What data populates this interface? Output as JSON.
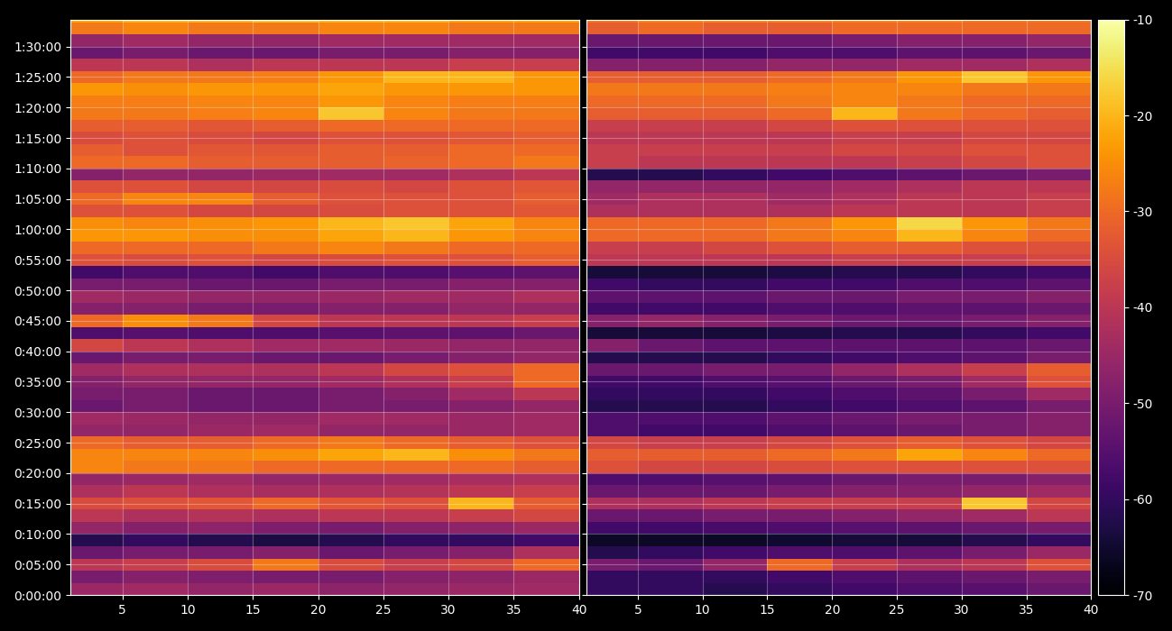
{
  "chart_data": [
    {
      "type": "heatmap",
      "color": "inferno",
      "grid": true,
      "xlim": [
        1,
        40
      ],
      "xticks": [
        5,
        10,
        15,
        20,
        25,
        30,
        35,
        40
      ],
      "ylim": [
        0,
        5666
      ],
      "yticks": [
        {
          "value": 0,
          "label": "0:00:00"
        },
        {
          "value": 300,
          "label": "0:05:00"
        },
        {
          "value": 600,
          "label": "0:10:00"
        },
        {
          "value": 900,
          "label": "0:15:00"
        },
        {
          "value": 1200,
          "label": "0:20:00"
        },
        {
          "value": 1500,
          "label": "0:25:00"
        },
        {
          "value": 1800,
          "label": "0:30:00"
        },
        {
          "value": 2100,
          "label": "0:35:00"
        },
        {
          "value": 2400,
          "label": "0:40:00"
        },
        {
          "value": 2700,
          "label": "0:45:00"
        },
        {
          "value": 3000,
          "label": "0:50:00"
        },
        {
          "value": 3300,
          "label": "0:55:00"
        },
        {
          "value": 3600,
          "label": "1:00:00"
        },
        {
          "value": 3900,
          "label": "1:05:00"
        },
        {
          "value": 4200,
          "label": "1:10:00"
        },
        {
          "value": 4500,
          "label": "1:15:00"
        },
        {
          "value": 4800,
          "label": "1:20:00"
        },
        {
          "value": 5100,
          "label": "1:25:00"
        },
        {
          "value": 5400,
          "label": "1:30:00"
        }
      ],
      "x_edges": [
        1,
        5,
        10,
        15,
        20,
        25,
        30,
        35,
        40
      ],
      "y_edges": [
        0,
        120,
        240,
        360,
        480,
        600,
        720,
        840,
        960,
        1080,
        1200,
        1320,
        1440,
        1560,
        1680,
        1800,
        1920,
        2040,
        2160,
        2280,
        2400,
        2520,
        2640,
        2760,
        2880,
        3000,
        3120,
        3240,
        3360,
        3480,
        3600,
        3720,
        3840,
        3960,
        4080,
        4200,
        4320,
        4440,
        4560,
        4680,
        4800,
        4920,
        5040,
        5160,
        5280,
        5400,
        5520,
        5640,
        5666
      ],
      "cells": [
        [
          -45,
          -44,
          -46,
          -45,
          -47,
          -46,
          -45,
          -44
        ],
        [
          -50,
          -48,
          -49,
          -50,
          -50,
          -48,
          -47,
          -45
        ],
        [
          -40,
          -38,
          -35,
          -28,
          -35,
          -38,
          -36,
          -30
        ],
        [
          -52,
          -50,
          -50,
          -48,
          -52,
          -50,
          -48,
          -42
        ],
        [
          -62,
          -60,
          -62,
          -63,
          -62,
          -60,
          -60,
          -58
        ],
        [
          -46,
          -48,
          -47,
          -49,
          -50,
          -48,
          -47,
          -45
        ],
        [
          -40,
          -42,
          -41,
          -42,
          -40,
          -40,
          -38,
          -36
        ],
        [
          -35,
          -34,
          -33,
          -30,
          -33,
          -34,
          -20,
          -32
        ],
        [
          -42,
          -40,
          -42,
          -43,
          -42,
          -41,
          -40,
          -38
        ],
        [
          -46,
          -45,
          -44,
          -46,
          -45,
          -44,
          -43,
          -42
        ],
        [
          -26,
          -28,
          -28,
          -30,
          -30,
          -30,
          -30,
          -32
        ],
        [
          -26,
          -26,
          -26,
          -25,
          -22,
          -20,
          -25,
          -28
        ],
        [
          -30,
          -32,
          -32,
          -30,
          -28,
          -30,
          -32,
          -34
        ],
        [
          -46,
          -46,
          -45,
          -44,
          -46,
          -46,
          -45,
          -44
        ],
        [
          -44,
          -45,
          -46,
          -46,
          -44,
          -44,
          -45,
          -44
        ],
        [
          -52,
          -50,
          -52,
          -52,
          -50,
          -50,
          -48,
          -46
        ],
        [
          -50,
          -50,
          -52,
          -52,
          -50,
          -48,
          -44,
          -40
        ],
        [
          -48,
          -46,
          -46,
          -46,
          -44,
          -42,
          -38,
          -30
        ],
        [
          -44,
          -42,
          -42,
          -42,
          -40,
          -36,
          -34,
          -30
        ],
        [
          -52,
          -50,
          -50,
          -52,
          -52,
          -50,
          -48,
          -46
        ],
        [
          -36,
          -40,
          -42,
          -44,
          -44,
          -45,
          -46,
          -46
        ],
        [
          -56,
          -55,
          -56,
          -56,
          -55,
          -54,
          -54,
          -52
        ],
        [
          -30,
          -25,
          -28,
          -36,
          -40,
          -40,
          -40,
          -38
        ],
        [
          -48,
          -48,
          -50,
          -50,
          -48,
          -48,
          -46,
          -46
        ],
        [
          -44,
          -45,
          -46,
          -46,
          -45,
          -44,
          -44,
          -42
        ],
        [
          -50,
          -50,
          -52,
          -52,
          -50,
          -50,
          -48,
          -48
        ],
        [
          -58,
          -56,
          -56,
          -58,
          -56,
          -56,
          -55,
          -54
        ],
        [
          -34,
          -35,
          -34,
          -36,
          -35,
          -34,
          -34,
          -32
        ],
        [
          -30,
          -30,
          -30,
          -28,
          -26,
          -28,
          -30,
          -30
        ],
        [
          -24,
          -24,
          -25,
          -25,
          -22,
          -20,
          -24,
          -26
        ],
        [
          -25,
          -26,
          -25,
          -24,
          -20,
          -18,
          -22,
          -26
        ],
        [
          -34,
          -34,
          -36,
          -36,
          -35,
          -34,
          -34,
          -33
        ],
        [
          -30,
          -26,
          -26,
          -32,
          -34,
          -34,
          -34,
          -32
        ],
        [
          -34,
          -34,
          -36,
          -36,
          -35,
          -36,
          -34,
          -33
        ],
        [
          -48,
          -46,
          -46,
          -45,
          -44,
          -44,
          -42,
          -40
        ],
        [
          -30,
          -30,
          -32,
          -32,
          -32,
          -31,
          -30,
          -28
        ],
        [
          -32,
          -34,
          -33,
          -33,
          -32,
          -32,
          -30,
          -30
        ],
        [
          -35,
          -34,
          -35,
          -36,
          -34,
          -34,
          -33,
          -32
        ],
        [
          -32,
          -32,
          -33,
          -32,
          -30,
          -30,
          -30,
          -30
        ],
        [
          -28,
          -28,
          -27,
          -26,
          -18,
          -26,
          -28,
          -28
        ],
        [
          -27,
          -27,
          -26,
          -26,
          -24,
          -26,
          -27,
          -27
        ],
        [
          -24,
          -25,
          -24,
          -24,
          -22,
          -24,
          -24,
          -24
        ],
        [
          -30,
          -28,
          -28,
          -27,
          -24,
          -20,
          -20,
          -24
        ],
        [
          -40,
          -40,
          -42,
          -40,
          -40,
          -40,
          -38,
          -38
        ],
        [
          -52,
          -50,
          -52,
          -52,
          -50,
          -50,
          -48,
          -48
        ],
        [
          -46,
          -44,
          -46,
          -46,
          -44,
          -44,
          -44,
          -44
        ],
        [
          -28,
          -26,
          -28,
          -28,
          -26,
          -26,
          -28,
          -28
        ],
        [
          -22,
          -20,
          -20,
          -18,
          -20,
          -20,
          -22,
          -22
        ]
      ]
    },
    {
      "type": "heatmap",
      "color": "inferno",
      "grid": true,
      "tick_labels": "x",
      "xlim": [
        1,
        40
      ],
      "xticks": [
        5,
        10,
        15,
        20,
        25,
        30,
        35,
        40
      ],
      "ylim": [
        0,
        5666
      ],
      "yticks": [
        0,
        300,
        600,
        900,
        1200,
        1500,
        1800,
        2100,
        2400,
        2700,
        3000,
        3300,
        3600,
        3900,
        4200,
        4500,
        4800,
        5100,
        5400
      ],
      "x_edges": [
        1,
        5,
        10,
        15,
        20,
        25,
        30,
        35,
        40
      ],
      "y_edges": [
        0,
        120,
        240,
        360,
        480,
        600,
        720,
        840,
        960,
        1080,
        1200,
        1320,
        1440,
        1560,
        1680,
        1800,
        1920,
        2040,
        2160,
        2280,
        2400,
        2520,
        2640,
        2760,
        2880,
        3000,
        3120,
        3240,
        3360,
        3480,
        3600,
        3720,
        3840,
        3960,
        4080,
        4200,
        4320,
        4440,
        4560,
        4680,
        4800,
        4920,
        5040,
        5160,
        5280,
        5400,
        5520,
        5640,
        5666
      ],
      "cells": [
        [
          -60,
          -60,
          -62,
          -60,
          -58,
          -56,
          -55,
          -52
        ],
        [
          -60,
          -60,
          -60,
          -58,
          -56,
          -54,
          -52,
          -50
        ],
        [
          -50,
          -52,
          -46,
          -30,
          -38,
          -42,
          -40,
          -34
        ],
        [
          -62,
          -60,
          -58,
          -56,
          -56,
          -54,
          -50,
          -45
        ],
        [
          -66,
          -66,
          -66,
          -65,
          -64,
          -64,
          -62,
          -60
        ],
        [
          -58,
          -58,
          -57,
          -56,
          -55,
          -54,
          -52,
          -50
        ],
        [
          -52,
          -52,
          -50,
          -50,
          -48,
          -46,
          -44,
          -40
        ],
        [
          -42,
          -42,
          -40,
          -38,
          -38,
          -38,
          -18,
          -36
        ],
        [
          -52,
          -52,
          -52,
          -50,
          -48,
          -48,
          -46,
          -44
        ],
        [
          -56,
          -56,
          -55,
          -54,
          -52,
          -50,
          -50,
          -48
        ],
        [
          -34,
          -36,
          -36,
          -35,
          -34,
          -34,
          -34,
          -34
        ],
        [
          -32,
          -32,
          -32,
          -30,
          -28,
          -22,
          -26,
          -30
        ],
        [
          -36,
          -38,
          -38,
          -36,
          -34,
          -32,
          -34,
          -36
        ],
        [
          -56,
          -58,
          -58,
          -56,
          -54,
          -52,
          -50,
          -48
        ],
        [
          -56,
          -56,
          -56,
          -54,
          -52,
          -50,
          -50,
          -48
        ],
        [
          -62,
          -62,
          -62,
          -60,
          -58,
          -56,
          -54,
          -50
        ],
        [
          -60,
          -60,
          -60,
          -58,
          -56,
          -54,
          -50,
          -44
        ],
        [
          -58,
          -58,
          -56,
          -55,
          -52,
          -50,
          -44,
          -34
        ],
        [
          -52,
          -52,
          -50,
          -50,
          -46,
          -42,
          -38,
          -32
        ],
        [
          -62,
          -62,
          -62,
          -60,
          -58,
          -56,
          -54,
          -50
        ],
        [
          -48,
          -52,
          -54,
          -54,
          -54,
          -54,
          -54,
          -52
        ],
        [
          -64,
          -64,
          -64,
          -63,
          -62,
          -62,
          -60,
          -58
        ],
        [
          -48,
          -46,
          -48,
          -50,
          -52,
          -52,
          -50,
          -48
        ],
        [
          -58,
          -58,
          -58,
          -56,
          -56,
          -54,
          -54,
          -52
        ],
        [
          -54,
          -54,
          -54,
          -52,
          -52,
          -50,
          -50,
          -48
        ],
        [
          -58,
          -60,
          -60,
          -58,
          -58,
          -56,
          -56,
          -54
        ],
        [
          -64,
          -64,
          -64,
          -63,
          -62,
          -62,
          -60,
          -58
        ],
        [
          -40,
          -40,
          -40,
          -40,
          -38,
          -38,
          -38,
          -36
        ],
        [
          -38,
          -38,
          -36,
          -34,
          -32,
          -32,
          -34,
          -34
        ],
        [
          -30,
          -30,
          -30,
          -28,
          -26,
          -20,
          -26,
          -30
        ],
        [
          -30,
          -30,
          -30,
          -28,
          -24,
          -16,
          -24,
          -28
        ],
        [
          -42,
          -42,
          -42,
          -42,
          -40,
          -40,
          -40,
          -38
        ],
        [
          -44,
          -42,
          -42,
          -44,
          -42,
          -40,
          -40,
          -38
        ],
        [
          -46,
          -46,
          -46,
          -46,
          -44,
          -42,
          -40,
          -40
        ],
        [
          -62,
          -62,
          -60,
          -58,
          -56,
          -54,
          -52,
          -50
        ],
        [
          -38,
          -40,
          -40,
          -40,
          -40,
          -38,
          -36,
          -34
        ],
        [
          -38,
          -38,
          -38,
          -38,
          -36,
          -36,
          -34,
          -34
        ],
        [
          -40,
          -40,
          -40,
          -40,
          -38,
          -38,
          -36,
          -36
        ],
        [
          -38,
          -38,
          -38,
          -36,
          -34,
          -34,
          -34,
          -34
        ],
        [
          -32,
          -32,
          -32,
          -30,
          -20,
          -28,
          -30,
          -32
        ],
        [
          -30,
          -30,
          -30,
          -28,
          -26,
          -28,
          -30,
          -30
        ],
        [
          -28,
          -28,
          -28,
          -27,
          -26,
          -26,
          -28,
          -28
        ],
        [
          -32,
          -32,
          -32,
          -30,
          -28,
          -24,
          -18,
          -24
        ],
        [
          -48,
          -48,
          -48,
          -46,
          -46,
          -44,
          -44,
          -42
        ],
        [
          -58,
          -58,
          -58,
          -56,
          -56,
          -54,
          -54,
          -52
        ],
        [
          -52,
          -52,
          -52,
          -52,
          -50,
          -48,
          -48,
          -46
        ],
        [
          -32,
          -30,
          -32,
          -32,
          -30,
          -30,
          -30,
          -30
        ],
        [
          -28,
          -26,
          -26,
          -26,
          -26,
          -26,
          -28,
          -28
        ]
      ],
      "colorbar": {
        "range": [
          -70,
          -10
        ],
        "ticks": [
          -70,
          -60,
          -50,
          -40,
          -30,
          -20,
          -10
        ]
      }
    }
  ]
}
